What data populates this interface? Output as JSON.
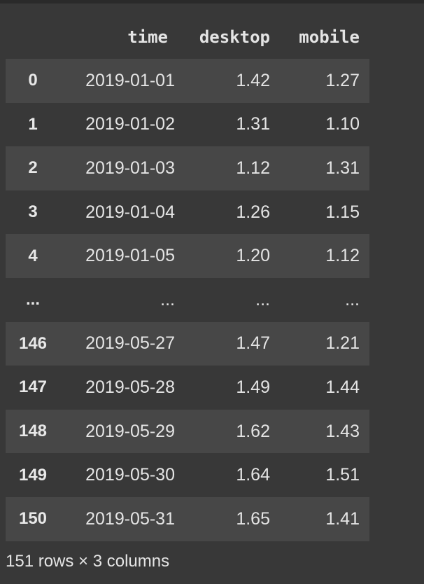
{
  "table": {
    "columns": [
      "",
      "time",
      "desktop",
      "mobile"
    ],
    "rows": [
      {
        "index": "0",
        "time": "2019-01-01",
        "desktop": "1.42",
        "mobile": "1.27"
      },
      {
        "index": "1",
        "time": "2019-01-02",
        "desktop": "1.31",
        "mobile": "1.10"
      },
      {
        "index": "2",
        "time": "2019-01-03",
        "desktop": "1.12",
        "mobile": "1.31"
      },
      {
        "index": "3",
        "time": "2019-01-04",
        "desktop": "1.26",
        "mobile": "1.15"
      },
      {
        "index": "4",
        "time": "2019-01-05",
        "desktop": "1.20",
        "mobile": "1.12"
      },
      {
        "index": "...",
        "time": "...",
        "desktop": "...",
        "mobile": "..."
      },
      {
        "index": "146",
        "time": "2019-05-27",
        "desktop": "1.47",
        "mobile": "1.21"
      },
      {
        "index": "147",
        "time": "2019-05-28",
        "desktop": "1.49",
        "mobile": "1.44"
      },
      {
        "index": "148",
        "time": "2019-05-29",
        "desktop": "1.62",
        "mobile": "1.43"
      },
      {
        "index": "149",
        "time": "2019-05-30",
        "desktop": "1.64",
        "mobile": "1.51"
      },
      {
        "index": "150",
        "time": "2019-05-31",
        "desktop": "1.65",
        "mobile": "1.41"
      }
    ],
    "footer": "151 rows × 3 columns"
  },
  "colors": {
    "background": "#383838",
    "stripe_row": "#474747",
    "text": "#e4e4e4"
  }
}
